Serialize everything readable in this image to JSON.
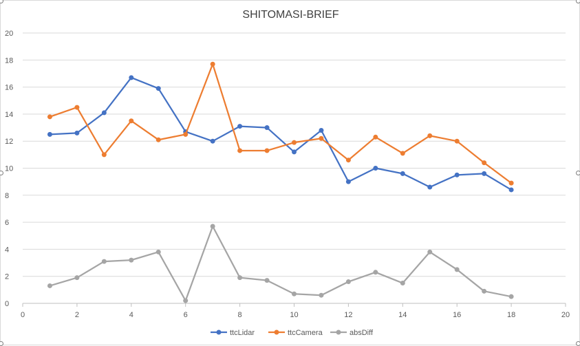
{
  "chart_data": {
    "type": "line",
    "title": "SHITOMASI-BRIEF",
    "xlabel": "",
    "ylabel": "",
    "xlim": [
      0,
      20
    ],
    "ylim": [
      0,
      20
    ],
    "x_ticks": [
      0,
      2,
      4,
      6,
      8,
      10,
      12,
      14,
      16,
      18,
      20
    ],
    "y_ticks": [
      0,
      2,
      4,
      6,
      8,
      10,
      12,
      14,
      16,
      18,
      20
    ],
    "grid": "horizontal",
    "legend_position": "bottom",
    "x": [
      1,
      2,
      3,
      4,
      5,
      6,
      7,
      8,
      9,
      10,
      11,
      12,
      13,
      14,
      15,
      16,
      17,
      18
    ],
    "series": [
      {
        "name": "ttcLidar",
        "color": "#4472c4",
        "values": [
          12.5,
          12.6,
          14.1,
          16.7,
          15.9,
          12.7,
          12.0,
          13.1,
          13.0,
          11.2,
          12.8,
          9.0,
          10.0,
          9.6,
          8.6,
          9.5,
          9.6,
          8.4
        ]
      },
      {
        "name": "ttcCamera",
        "color": "#ed7d31",
        "values": [
          13.8,
          14.5,
          11.0,
          13.5,
          12.1,
          12.5,
          17.7,
          11.3,
          11.3,
          11.9,
          12.2,
          10.6,
          12.3,
          11.1,
          12.4,
          12.0,
          10.4,
          8.9
        ]
      },
      {
        "name": "absDiff",
        "color": "#a5a5a5",
        "values": [
          1.3,
          1.9,
          3.1,
          3.2,
          3.8,
          0.2,
          5.7,
          1.9,
          1.7,
          0.7,
          0.6,
          1.6,
          2.3,
          1.5,
          3.8,
          2.5,
          0.9,
          0.5
        ]
      }
    ]
  },
  "colors": {
    "gridline": "#d9d9d9",
    "axis": "#bfbfbf",
    "text": "#595959",
    "title": "#404040"
  }
}
